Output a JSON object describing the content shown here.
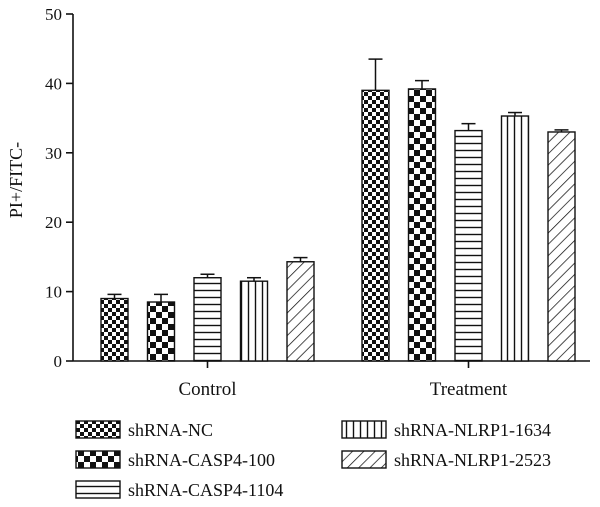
{
  "chart_data": {
    "type": "bar",
    "title": "",
    "xlabel": "",
    "ylabel": "PI+/FITC-",
    "ylim": [
      0,
      50
    ],
    "yticks": [
      "0",
      "10",
      "20",
      "30",
      "40",
      "50"
    ],
    "categories": [
      "Control",
      "Treatment"
    ],
    "series": [
      {
        "name": "shRNA-NC",
        "values": [
          9.0,
          39.0
        ],
        "errors": [
          0.6,
          4.5
        ],
        "pattern": "checker-small"
      },
      {
        "name": "shRNA-CASP4-100",
        "values": [
          8.5,
          39.2
        ],
        "errors": [
          1.1,
          1.2
        ],
        "pattern": "checker-large"
      },
      {
        "name": "shRNA-CASP4-1104",
        "values": [
          12.0,
          33.2
        ],
        "errors": [
          0.5,
          1.0
        ],
        "pattern": "horizontal-lines"
      },
      {
        "name": "shRNA-NLRP1-1634",
        "values": [
          11.5,
          35.3
        ],
        "errors": [
          0.5,
          0.5
        ],
        "pattern": "vertical-lines"
      },
      {
        "name": "shRNA-NLRP1-2523",
        "values": [
          14.3,
          33.0
        ],
        "errors": [
          0.6,
          0.3
        ],
        "pattern": "diagonal-lines"
      }
    ],
    "legend_position": "bottom",
    "grid": false,
    "error_bars": true
  }
}
